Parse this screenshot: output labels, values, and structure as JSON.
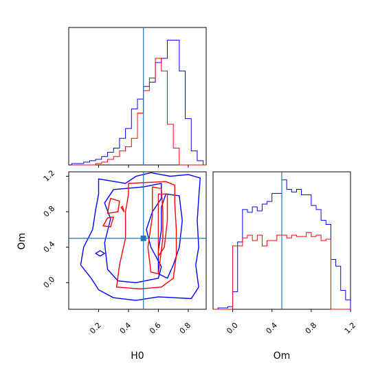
{
  "chart_data": {
    "type": "corner",
    "parameters": [
      "H0",
      "Om"
    ],
    "truth": {
      "H0": 0.5,
      "Om": 0.5
    },
    "colors": {
      "series_a": "#0000ff",
      "series_b": "#ff0000",
      "truth": "#1f77b4"
    },
    "panels": [
      {
        "id": "hist_H0",
        "type": "histogram",
        "xlim": [
          0.0,
          0.92
        ],
        "bin_edges": [
          0.02,
          0.06,
          0.1,
          0.14,
          0.18,
          0.22,
          0.26,
          0.3,
          0.34,
          0.38,
          0.42,
          0.46,
          0.5,
          0.54,
          0.58,
          0.62,
          0.66,
          0.7,
          0.74,
          0.78,
          0.82,
          0.86,
          0.9,
          0.92
        ],
        "series": [
          {
            "color_key": "series_a",
            "counts": [
              1,
              1,
              2,
              3,
              4,
              6,
              9,
              12,
              19,
              26,
              40,
              47,
              56,
              59,
              73,
              76,
              89,
              89,
              67,
              33,
              10,
              3,
              0
            ]
          },
          {
            "color_key": "series_b",
            "counts": [
              0,
              0,
              0,
              0,
              1,
              2,
              4,
              6,
              10,
              13,
              19,
              37,
              53,
              62,
              76,
              67,
              29,
              12,
              0,
              0,
              0,
              0,
              0
            ]
          }
        ],
        "xticks": [
          0.2,
          0.4,
          0.6,
          0.8
        ],
        "ymax": 98
      },
      {
        "id": "hist_Om",
        "type": "histogram",
        "xlim": [
          -0.2,
          1.2
        ],
        "bin_edges": [
          -0.2,
          -0.15,
          -0.1,
          -0.05,
          0.0,
          0.05,
          0.1,
          0.15,
          0.2,
          0.25,
          0.3,
          0.35,
          0.4,
          0.45,
          0.5,
          0.55,
          0.6,
          0.65,
          0.7,
          0.75,
          0.8,
          0.85,
          0.9,
          0.95,
          1.0,
          1.05,
          1.1,
          1.15,
          1.2
        ],
        "series": [
          {
            "color_key": "series_a",
            "counts": [
              0,
              1,
              1,
              2,
              13,
              50,
              74,
              72,
              76,
              73,
              78,
              80,
              86,
              86,
              96,
              89,
              87,
              89,
              85,
              85,
              77,
              74,
              66,
              63,
              37,
              32,
              14,
              7
            ]
          },
          {
            "color_key": "series_b",
            "counts": [
              0,
              0,
              0,
              0,
              47,
              47,
              53,
              55,
              51,
              55,
              47,
              51,
              51,
              55,
              55,
              53,
              55,
              54,
              54,
              57,
              54,
              55,
              51,
              52,
              0,
              0,
              0,
              0
            ]
          }
        ],
        "xticks": [
          0.0,
          0.4,
          0.8,
          1.2
        ],
        "ymax": 102
      },
      {
        "id": "contour_H0_Om",
        "type": "contour",
        "xlim": [
          0.0,
          0.92
        ],
        "ylim": [
          -0.3,
          1.25
        ],
        "xticks": [
          0.2,
          0.4,
          0.6,
          0.8
        ],
        "yticks": [
          0.0,
          0.4,
          0.8,
          1.2
        ],
        "series": [
          {
            "color_key": "series_a",
            "contours": [
              [
                [
                  0.2,
                  1.17
                ],
                [
                  0.38,
                  1.12
                ],
                [
                  0.45,
                  1.2
                ],
                [
                  0.55,
                  1.24
                ],
                [
                  0.68,
                  1.2
                ],
                [
                  0.8,
                  1.22
                ],
                [
                  0.88,
                  1.18
                ],
                [
                  0.87,
                  0.95
                ],
                [
                  0.86,
                  0.7
                ],
                [
                  0.87,
                  0.4
                ],
                [
                  0.85,
                  0.2
                ],
                [
                  0.87,
                  -0.05
                ],
                [
                  0.82,
                  -0.18
                ],
                [
                  0.6,
                  -0.16
                ],
                [
                  0.45,
                  -0.2
                ],
                [
                  0.3,
                  -0.17
                ],
                [
                  0.2,
                  -0.08
                ],
                [
                  0.15,
                  0.05
                ],
                [
                  0.08,
                  0.2
                ],
                [
                  0.1,
                  0.4
                ],
                [
                  0.16,
                  0.6
                ],
                [
                  0.18,
                  0.82
                ],
                [
                  0.2,
                  1.0
                ]
              ],
              [
                [
                  0.3,
                  1.05
                ],
                [
                  0.5,
                  1.08
                ],
                [
                  0.62,
                  1.12
                ],
                [
                  0.62,
                  0.95
                ],
                [
                  0.56,
                  0.8
                ],
                [
                  0.52,
                  0.6
                ],
                [
                  0.55,
                  0.4
                ],
                [
                  0.62,
                  0.18
                ],
                [
                  0.6,
                  0.05
                ],
                [
                  0.45,
                  0.0
                ],
                [
                  0.33,
                  0.02
                ],
                [
                  0.26,
                  0.15
                ],
                [
                  0.24,
                  0.45
                ],
                [
                  0.28,
                  0.72
                ],
                [
                  0.24,
                  0.9
                ]
              ],
              [
                [
                  0.65,
                  1.0
                ],
                [
                  0.74,
                  0.98
                ],
                [
                  0.76,
                  0.7
                ],
                [
                  0.74,
                  0.4
                ],
                [
                  0.7,
                  0.2
                ],
                [
                  0.66,
                  0.05
                ],
                [
                  0.6,
                  0.1
                ],
                [
                  0.6,
                  0.35
                ],
                [
                  0.62,
                  0.6
                ],
                [
                  0.62,
                  0.85
                ]
              ],
              [
                [
                  0.18,
                  0.33
                ],
                [
                  0.21,
                  0.3
                ],
                [
                  0.24,
                  0.33
                ],
                [
                  0.21,
                  0.36
                ]
              ]
            ]
          },
          {
            "color_key": "series_b",
            "contours": [
              [
                [
                  0.4,
                  1.12
                ],
                [
                  0.65,
                  1.14
                ],
                [
                  0.71,
                  1.1
                ],
                [
                  0.71,
                  0.9
                ],
                [
                  0.72,
                  0.6
                ],
                [
                  0.72,
                  0.3
                ],
                [
                  0.7,
                  0.05
                ],
                [
                  0.62,
                  -0.05
                ],
                [
                  0.48,
                  -0.07
                ],
                [
                  0.32,
                  -0.05
                ],
                [
                  0.34,
                  0.2
                ],
                [
                  0.38,
                  0.5
                ],
                [
                  0.38,
                  0.8
                ],
                [
                  0.4,
                  1.0
                ]
              ],
              [
                [
                  0.28,
                  0.95
                ],
                [
                  0.34,
                  0.92
                ],
                [
                  0.33,
                  0.8
                ],
                [
                  0.26,
                  0.78
                ],
                [
                  0.27,
                  0.88
                ]
              ],
              [
                [
                  0.26,
                  0.73
                ],
                [
                  0.3,
                  0.74
                ],
                [
                  0.28,
                  0.63
                ],
                [
                  0.23,
                  0.64
                ]
              ],
              [
                [
                  0.56,
                  1.08
                ],
                [
                  0.62,
                  1.06
                ],
                [
                  0.63,
                  0.8
                ],
                [
                  0.63,
                  0.5
                ],
                [
                  0.6,
                  0.1
                ],
                [
                  0.55,
                  0.12
                ],
                [
                  0.53,
                  0.4
                ],
                [
                  0.56,
                  0.75
                ]
              ],
              [
                [
                  0.6,
                  1.0
                ],
                [
                  0.66,
                  1.0
                ],
                [
                  0.66,
                  0.7
                ],
                [
                  0.64,
                  0.4
                ],
                [
                  0.6,
                  0.3
                ],
                [
                  0.6,
                  0.6
                ]
              ],
              [
                [
                  0.35,
                  0.85
                ],
                [
                  0.37,
                  0.8
                ],
                [
                  0.36,
                  0.86
                ]
              ]
            ]
          }
        ]
      }
    ],
    "xlabels": [
      "H0",
      "Om"
    ],
    "ylabels": [
      "Om"
    ]
  }
}
